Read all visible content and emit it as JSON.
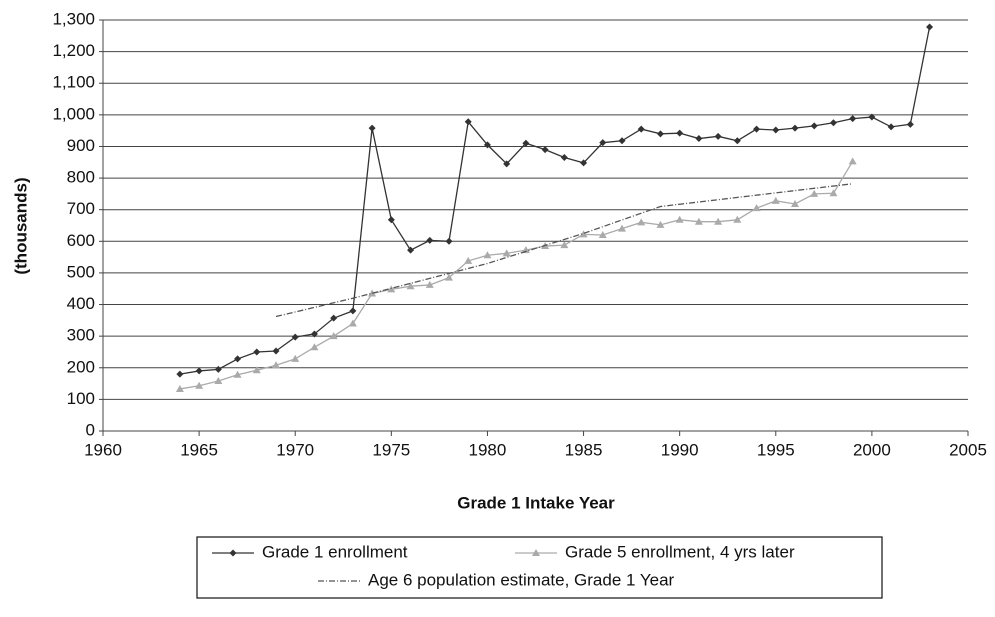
{
  "chart_data": {
    "type": "line",
    "ylabel": "(thousands)",
    "xlabel": "Grade 1 Intake Year",
    "xlim": [
      1960,
      2005
    ],
    "xticks": [
      1960,
      1965,
      1970,
      1975,
      1980,
      1985,
      1990,
      1995,
      2000,
      2005
    ],
    "ylim": [
      0,
      1300
    ],
    "yticks": [
      0,
      100,
      200,
      300,
      400,
      500,
      600,
      700,
      800,
      900,
      {
        "value": 1000,
        "label": "1,000"
      },
      {
        "value": 1100,
        "label": "1,100"
      },
      {
        "value": 1200,
        "label": "1,200"
      },
      {
        "value": 1300,
        "label": "1,300"
      }
    ],
    "grid": true,
    "series": [
      {
        "name": "Grade 1 enrollment",
        "color": "#333333",
        "marker": "diamond",
        "dash": false,
        "x": [
          1964,
          1965,
          1966,
          1967,
          1968,
          1969,
          1970,
          1971,
          1972,
          1973,
          1974,
          1975,
          1976,
          1977,
          1978,
          1979,
          1980,
          1981,
          1982,
          1983,
          1984,
          1985,
          1986,
          1987,
          1988,
          1989,
          1990,
          1991,
          1992,
          1993,
          1994,
          1995,
          1996,
          1997,
          1998,
          1999,
          2000,
          2001,
          2002,
          2003
        ],
        "values": [
          180,
          190,
          195,
          228,
          250,
          253,
          297,
          307,
          357,
          380,
          958,
          668,
          572,
          603,
          600,
          978,
          905,
          845,
          910,
          890,
          865,
          848,
          912,
          918,
          955,
          940,
          942,
          925,
          932,
          918,
          955,
          952,
          958,
          965,
          975,
          988,
          993,
          962,
          970,
          1278
        ]
      },
      {
        "name": "Grade 5 enrollment, 4 yrs later",
        "color": "#aaaaaa",
        "marker": "triangle",
        "dash": false,
        "x": [
          1964,
          1965,
          1966,
          1967,
          1968,
          1969,
          1970,
          1971,
          1972,
          1973,
          1974,
          1975,
          1976,
          1977,
          1978,
          1979,
          1980,
          1981,
          1982,
          1983,
          1984,
          1985,
          1986,
          1987,
          1988,
          1989,
          1990,
          1991,
          1992,
          1993,
          1994,
          1995,
          1996,
          1997,
          1998,
          1999
        ],
        "values": [
          133,
          143,
          158,
          178,
          192,
          208,
          228,
          265,
          300,
          340,
          435,
          448,
          458,
          462,
          485,
          538,
          556,
          562,
          572,
          585,
          588,
          622,
          620,
          640,
          660,
          652,
          668,
          662,
          662,
          668,
          705,
          728,
          718,
          750,
          752,
          853
        ]
      },
      {
        "name": "Age 6 population estimate, Grade 1 Year",
        "color": "#555555",
        "marker": "none",
        "dash": true,
        "x": [
          1969,
          1973,
          1980,
          1985,
          1989,
          1999
        ],
        "values": [
          362,
          420,
          530,
          625,
          710,
          782
        ]
      }
    ]
  }
}
